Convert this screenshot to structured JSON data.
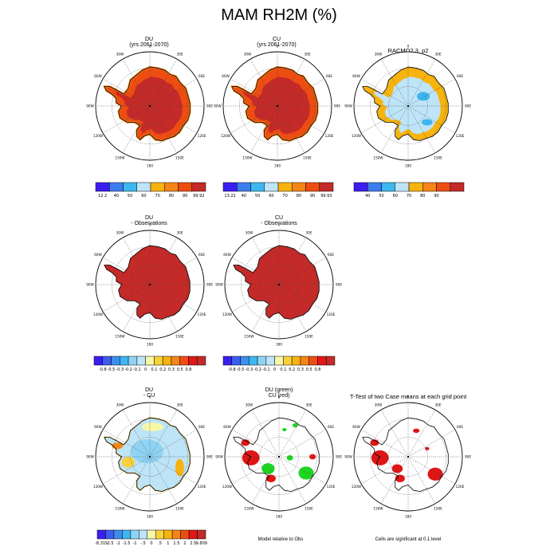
{
  "figure": {
    "title": "MAM RH2M (%)",
    "lon_labels": [
      "0",
      "30E",
      "60E",
      "90E",
      "120E",
      "150E",
      "180",
      "150W",
      "120W",
      "90W",
      "60W",
      "30W"
    ]
  },
  "colors": {
    "ocean": "#ffffff",
    "coast": "#000000",
    "sig_green": "#1fd61f",
    "sig_red": "#e01515"
  },
  "panels": [
    {
      "id": "du",
      "title_lines": [
        "DU",
        "(yrs 2061-2070)"
      ],
      "fill": "rh_du"
    },
    {
      "id": "cu",
      "title_lines": [
        "CU",
        "(yrs 2061-2070)"
      ],
      "fill": "rh_cu"
    },
    {
      "id": "racmo",
      "title_lines": [
        "RACMO2.3_p2"
      ],
      "fill": "rh_obs"
    },
    {
      "id": "du_obs",
      "title_lines": [
        "DU",
        "- Observations"
      ],
      "fill": "diff_obs"
    },
    {
      "id": "cu_obs",
      "title_lines": [
        "CU",
        "- Observations"
      ],
      "fill": "diff_obs"
    },
    {
      "id": "du_cu",
      "title_lines": [
        "DU",
        "- CU"
      ],
      "fill": "diff_case"
    },
    {
      "id": "sig_obs",
      "title_lines": [
        "DU (green)",
        "CU (red)"
      ],
      "fill": "sig_obs"
    },
    {
      "id": "ttest",
      "title_lines": [
        "T-Test of two Case means at each grid point"
      ],
      "fill": "sig_case"
    }
  ],
  "notes": {
    "sig_obs": "Model relative to Obs",
    "ttest": "Cells are significant at 0.1 level"
  },
  "chart_data": [
    {
      "type": "heatmap",
      "panel": "du",
      "title": "DU (yrs 2061-2070)",
      "colorbar": {
        "colors": [
          "#3a1ef0",
          "#3c7ded",
          "#3db7f0",
          "#bee4f7",
          "#f7b30e",
          "#f58518",
          "#ee4d12",
          "#c42a28"
        ],
        "labels": [
          "12.2",
          "40",
          "50",
          "60",
          "70",
          "80",
          "90",
          "99.92"
        ],
        "min": 12.2,
        "max": 99.92
      },
      "dominant_range": [
        90,
        99.92
      ]
    },
    {
      "type": "heatmap",
      "panel": "cu",
      "title": "CU (yrs 2061-2070)",
      "colorbar": {
        "colors": [
          "#3a1ef0",
          "#3c7ded",
          "#3db7f0",
          "#bee4f7",
          "#f7b30e",
          "#f58518",
          "#ee4d12",
          "#c42a28"
        ],
        "labels": [
          "13.22",
          "40",
          "50",
          "60",
          "70",
          "80",
          "90",
          "99.93"
        ],
        "min": 13.22,
        "max": 99.93
      },
      "dominant_range": [
        90,
        99.93
      ]
    },
    {
      "type": "heatmap",
      "panel": "racmo",
      "title": "RACMO2.3_p2",
      "colorbar": {
        "colors": [
          "#3a1ef0",
          "#3c7ded",
          "#3db7f0",
          "#bee4f7",
          "#f7b30e",
          "#f58518",
          "#ee4d12",
          "#c42a28"
        ],
        "labels": [
          "40",
          "50",
          "60",
          "70",
          "80",
          "90"
        ]
      },
      "dominant_range": [
        60,
        80
      ]
    },
    {
      "type": "heatmap",
      "panel": "du_obs",
      "title": "DU - Observations",
      "colorbar": {
        "colors": [
          "#3a1ef0",
          "#3c5ef0",
          "#3c8ded",
          "#3db7f0",
          "#8fd3f4",
          "#bee4f7",
          "#f7f7a8",
          "#f7d23d",
          "#f7b30e",
          "#f58518",
          "#ee4d12",
          "#e01818",
          "#c42a28"
        ],
        "labels": [
          "-0.8",
          "-0.5",
          "-0.3",
          "-0.2",
          "-0.1",
          "0",
          "0.1",
          "0.2",
          "0.3",
          "0.5",
          "0.8"
        ]
      },
      "dominant_range": [
        0.8,
        1.0
      ]
    },
    {
      "type": "heatmap",
      "panel": "cu_obs",
      "title": "CU - Observations",
      "colorbar": {
        "colors": [
          "#3a1ef0",
          "#3c5ef0",
          "#3c8ded",
          "#3db7f0",
          "#8fd3f4",
          "#bee4f7",
          "#f7f7a8",
          "#f7d23d",
          "#f7b30e",
          "#f58518",
          "#ee4d12",
          "#e01818",
          "#c42a28"
        ],
        "labels": [
          "-0.8",
          "-0.5",
          "-0.3",
          "-0.2",
          "-0.1",
          "0",
          "0.1",
          "0.2",
          "0.3",
          "0.5",
          "0.8"
        ]
      },
      "dominant_range": [
        0.8,
        1.0
      ]
    },
    {
      "type": "heatmap",
      "panel": "du_cu",
      "title": "DU - CU",
      "colorbar": {
        "colors": [
          "#3a1ef0",
          "#3c5ef0",
          "#3c8ded",
          "#3db7f0",
          "#8fd3f4",
          "#bee4f7",
          "#f7f7a8",
          "#f7d23d",
          "#f7b30e",
          "#f58518",
          "#ee4d12",
          "#e01818",
          "#c42a28"
        ],
        "labels": [
          "-8.315",
          "-2.5",
          "-2",
          "-1.5",
          "-1",
          "-.5",
          "0",
          ".5",
          "1",
          "1.5",
          "2",
          "2.5",
          "9.809"
        ],
        "min": -8.315,
        "max": 9.809
      }
    }
  ]
}
